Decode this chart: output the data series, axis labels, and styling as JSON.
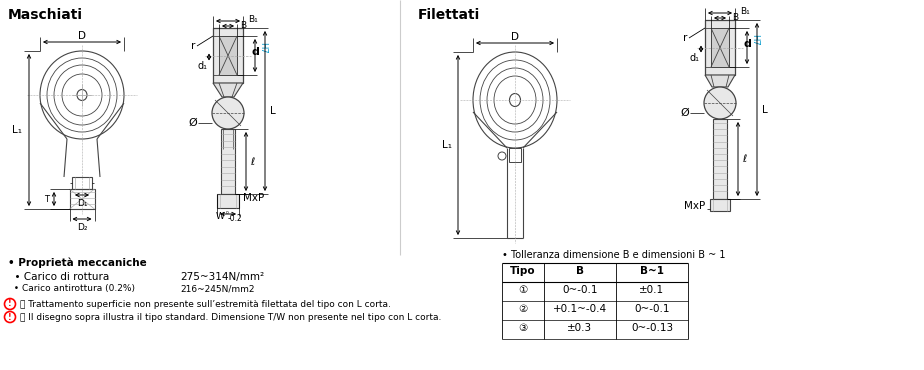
{
  "title_left": "Maschiati",
  "title_right": "Filettati",
  "bg_color": "#ffffff",
  "table_header": [
    "Tipo",
    "B",
    "B~1"
  ],
  "table_rows": [
    [
      "①",
      "0~-0.1",
      "±0.1"
    ],
    [
      "②",
      "+0.1~-0.4",
      "0~-0.1"
    ],
    [
      "③",
      "±0.3",
      "0~-0.13"
    ]
  ],
  "tolerance_title": "• Tolleranza dimensione B e dimensioni B ~ 1",
  "prop_title": "• Proprietà meccaniche",
  "carico_label": "  • Carico di rottura",
  "carico_value": "275~314N/mm²",
  "carico_anti_label": "  • Carico antirottura (0.2%)",
  "carico_anti_value": "216~245N/mm2",
  "note1": "ⓘ Trattamento superficie non presente sull’estremità filettata del tipo con L corta.",
  "note2": "ⓘ Il disegno sopra illustra il tipo standard. Dimensione T/W non presente nel tipo con L corta.",
  "dim_color": "#000000",
  "blue_color": "#0099cc",
  "red_circle_color": "#ff0000",
  "draw_color": "#444444",
  "gray_color": "#aaaaaa"
}
